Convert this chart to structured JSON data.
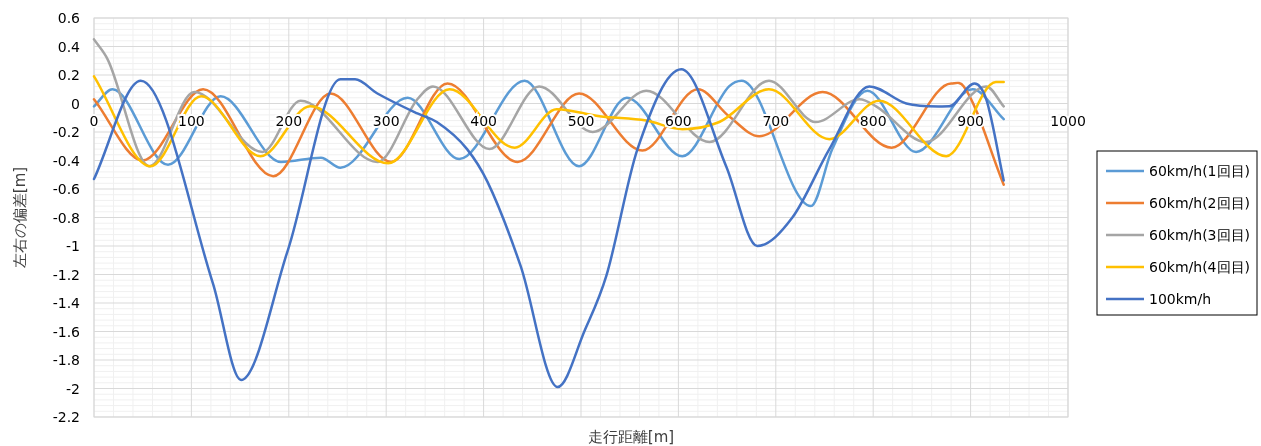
{
  "chart_data": {
    "type": "line",
    "xlabel": "走行距離[m]",
    "ylabel": "左右の偏差[m]",
    "xlim": [
      0,
      1000
    ],
    "ylim": [
      -2.2,
      0.6
    ],
    "xticks": [
      0,
      100,
      200,
      300,
      400,
      500,
      600,
      700,
      800,
      900,
      1000
    ],
    "yticks": [
      -2.2,
      -2,
      -1.8,
      -1.6,
      -1.4,
      -1.2,
      -1,
      -0.8,
      -0.6,
      -0.4,
      -0.2,
      0,
      0.2,
      0.4,
      0.6
    ],
    "grid": true,
    "legend": "right",
    "marker": "none",
    "line_style": "solid",
    "series": [
      {
        "name": "60km/h(1回目)",
        "color": "#5b9bd5",
        "x": [
          0,
          19,
          76,
          130,
          192,
          233,
          253,
          322,
          375,
          442,
          498,
          547,
          604,
          652,
          665,
          736,
          758,
          794,
          844,
          902,
          934
        ],
        "values": [
          -0.02,
          0.1,
          -0.43,
          0.05,
          -0.41,
          -0.38,
          -0.45,
          0.04,
          -0.39,
          0.16,
          -0.44,
          0.04,
          -0.37,
          0.12,
          0.16,
          -0.72,
          -0.32,
          0.09,
          -0.34,
          0.1,
          -0.11
        ]
      },
      {
        "name": "60km/h(2回目)",
        "color": "#ed7d31",
        "x": [
          0,
          50,
          112,
          184,
          243,
          305,
          363,
          435,
          498,
          563,
          620,
          652,
          683,
          748,
          819,
          880,
          893,
          934
        ],
        "values": [
          0.03,
          -0.4,
          0.1,
          -0.51,
          0.07,
          -0.41,
          0.14,
          -0.41,
          0.07,
          -0.33,
          0.1,
          -0.09,
          -0.23,
          0.08,
          -0.31,
          0.14,
          0.12,
          -0.57
        ]
      },
      {
        "name": "60km/h(3回目)",
        "color": "#a5a5a5",
        "x": [
          0,
          14,
          57,
          103,
          173,
          212,
          291,
          332,
          348,
          406,
          457,
          512,
          567,
          632,
          693,
          741,
          786,
          803,
          854,
          916,
          934
        ],
        "values": [
          0.45,
          0.31,
          -0.44,
          0.08,
          -0.34,
          0.02,
          -0.41,
          0.03,
          0.12,
          -0.32,
          0.12,
          -0.2,
          0.09,
          -0.27,
          0.16,
          -0.13,
          0.03,
          -0.02,
          -0.27,
          0.12,
          -0.02
        ]
      },
      {
        "name": "60km/h(4回目)",
        "color": "#ffc000",
        "x": [
          0,
          58,
          110,
          171,
          222,
          302,
          365,
          432,
          475,
          519,
          567,
          604,
          642,
          693,
          755,
          806,
          875,
          926,
          934
        ],
        "values": [
          0.19,
          -0.44,
          0.05,
          -0.37,
          -0.02,
          -0.42,
          0.1,
          -0.31,
          -0.04,
          -0.09,
          -0.12,
          -0.18,
          -0.13,
          0.1,
          -0.25,
          0.02,
          -0.37,
          0.15,
          0.15
        ]
      },
      {
        "name": "100km/h",
        "color": "#4472c4",
        "x": [
          0,
          48,
          122,
          151,
          199,
          253,
          268,
          291,
          332,
          352,
          383,
          404,
          438,
          476,
          504,
          526,
          558,
          603,
          649,
          681,
          717,
          755,
          796,
          834,
          878,
          904,
          916,
          934
        ],
        "values": [
          -0.53,
          0.16,
          -1.26,
          -1.94,
          -1.03,
          0.17,
          0.17,
          0.07,
          -0.07,
          -0.13,
          -0.32,
          -0.55,
          -1.14,
          -1.99,
          -1.59,
          -1.21,
          -0.32,
          0.24,
          -0.44,
          -1,
          -0.8,
          -0.32,
          0.12,
          0,
          -0.02,
          0.14,
          0.03,
          -0.54
        ]
      }
    ]
  }
}
